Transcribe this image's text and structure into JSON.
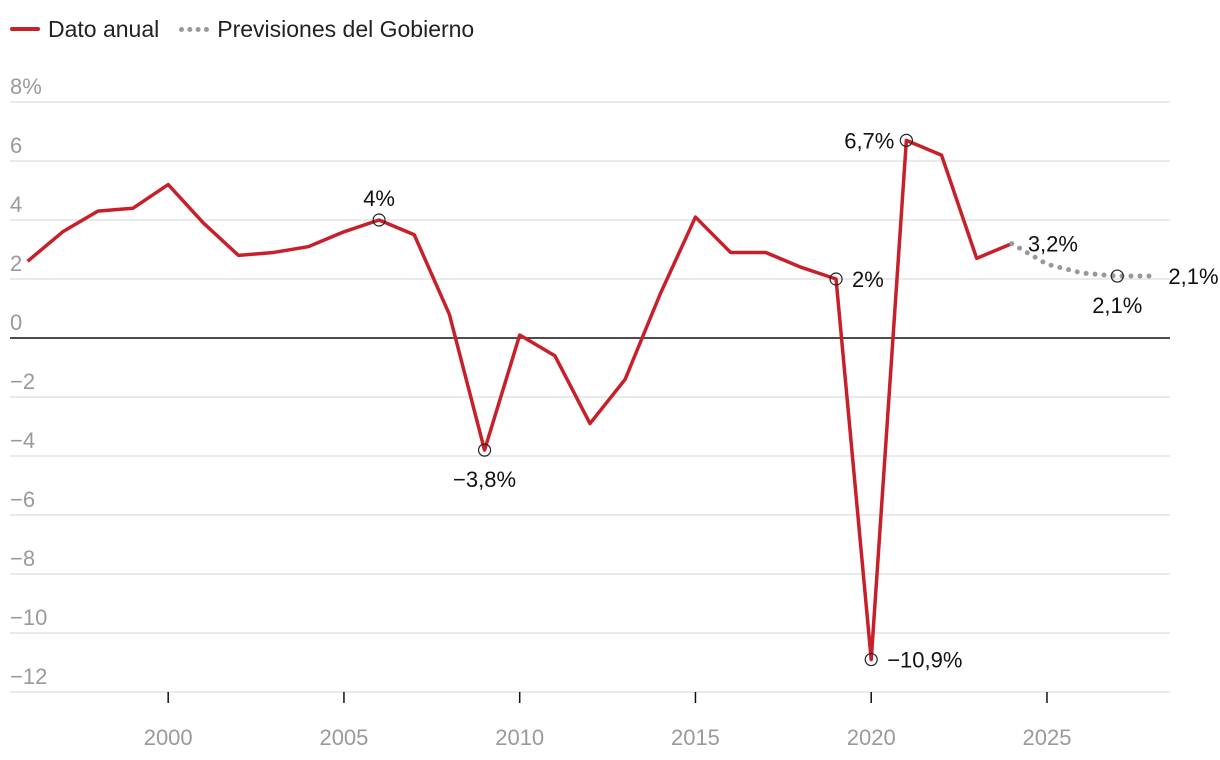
{
  "legend": {
    "annual_label": "Dato anual",
    "forecast_label": "Previsiones del Gobierno"
  },
  "colors": {
    "annual": "#c8202b",
    "forecast": "#999999",
    "grid": "#dddddd",
    "zero_line": "#111111",
    "tick_text": "#9a9a9a"
  },
  "chart_data": {
    "type": "line",
    "xlim": [
      1995.5,
      2028.5
    ],
    "ylim": [
      -12,
      8
    ],
    "x_ticks": [
      2000,
      2005,
      2010,
      2015,
      2020,
      2025
    ],
    "y_ticks": [
      {
        "value": 8,
        "label": "8%"
      },
      {
        "value": 6,
        "label": "6"
      },
      {
        "value": 4,
        "label": "4"
      },
      {
        "value": 2,
        "label": "2"
      },
      {
        "value": 0,
        "label": "0"
      },
      {
        "value": -2,
        "label": "−2"
      },
      {
        "value": -4,
        "label": "−4"
      },
      {
        "value": -6,
        "label": "−6"
      },
      {
        "value": -8,
        "label": "−8"
      },
      {
        "value": -10,
        "label": "−10"
      },
      {
        "value": -12,
        "label": "−12"
      }
    ],
    "grid": true,
    "series": [
      {
        "name": "Dato anual",
        "style": "solid",
        "x": [
          1996,
          1997,
          1998,
          1999,
          2000,
          2001,
          2002,
          2003,
          2004,
          2005,
          2006,
          2007,
          2008,
          2009,
          2010,
          2011,
          2012,
          2013,
          2014,
          2015,
          2016,
          2017,
          2018,
          2019,
          2020,
          2021,
          2022,
          2023,
          2024
        ],
        "y": [
          2.6,
          3.6,
          4.3,
          4.4,
          5.2,
          3.9,
          2.8,
          2.9,
          3.1,
          3.6,
          4.0,
          3.5,
          0.8,
          -3.8,
          0.1,
          -0.6,
          -2.9,
          -1.4,
          1.5,
          4.1,
          2.9,
          2.9,
          2.4,
          2.0,
          -10.9,
          6.7,
          6.2,
          2.7,
          3.2
        ]
      },
      {
        "name": "Previsiones del Gobierno",
        "style": "dotted",
        "x": [
          2024,
          2025,
          2026,
          2027,
          2028
        ],
        "y": [
          3.2,
          2.5,
          2.2,
          2.1,
          2.1
        ]
      }
    ],
    "annotations": [
      {
        "x": 2006,
        "y": 4.0,
        "label": "4%",
        "pos": "above",
        "marker": true
      },
      {
        "x": 2009,
        "y": -3.8,
        "label": "−3,8%",
        "pos": "below",
        "marker": true
      },
      {
        "x": 2019,
        "y": 2.0,
        "label": "2%",
        "pos": "right",
        "marker": true
      },
      {
        "x": 2020,
        "y": -10.9,
        "label": "−10,9%",
        "pos": "right",
        "marker": true
      },
      {
        "x": 2021,
        "y": 6.7,
        "label": "6,7%",
        "pos": "left",
        "marker": true
      },
      {
        "x": 2024,
        "y": 3.2,
        "label": "3,2%",
        "pos": "right",
        "marker": false
      },
      {
        "x": 2027,
        "y": 2.1,
        "label": "2,1%",
        "pos": "below",
        "marker": true
      },
      {
        "x": 2028,
        "y": 2.1,
        "label": "2,1%",
        "pos": "right",
        "marker": false
      }
    ]
  }
}
